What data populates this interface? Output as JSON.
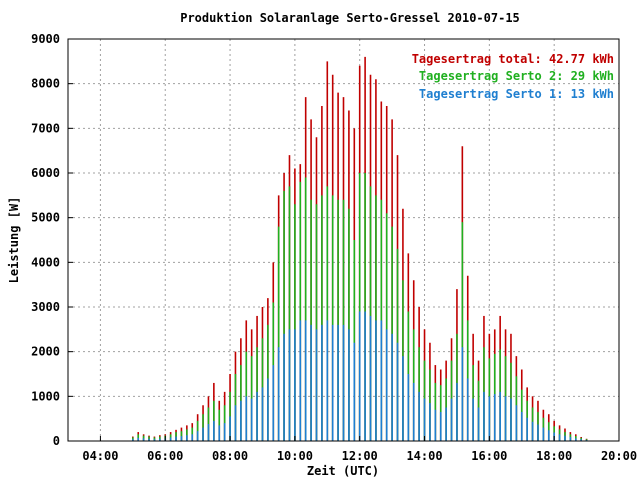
{
  "chart_data": {
    "type": "bar",
    "title": "Produktion Solaranlage Serto-Gressel 2010-07-15",
    "xlabel": "Zeit (UTC)",
    "ylabel": "Leistung [W]",
    "xlim": [
      "03:00",
      "20:00"
    ],
    "ylim": [
      0,
      9000
    ],
    "grid": true,
    "legend_position": "top-right",
    "x_ticks": [
      "04:00",
      "06:00",
      "08:00",
      "10:00",
      "12:00",
      "14:00",
      "16:00",
      "18:00",
      "20:00"
    ],
    "y_ticks": [
      "0",
      "1000",
      "2000",
      "3000",
      "4000",
      "5000",
      "6000",
      "7000",
      "8000",
      "9000"
    ],
    "legend": [
      {
        "label": "Tagesertrag total: 42.77 kWh",
        "color": "#c00000"
      },
      {
        "label": "Tagesertrag Serto 2: 29 kWh",
        "color": "#20b020"
      },
      {
        "label": "Tagesertrag Serto 1: 13 kWh",
        "color": "#1f7fd0"
      }
    ],
    "series_colors": {
      "total": "#c00000",
      "serto2": "#20b020",
      "serto1": "#1f7fd0"
    },
    "time_points": [
      "05:00",
      "05:10",
      "05:20",
      "05:30",
      "05:40",
      "05:50",
      "06:00",
      "06:10",
      "06:20",
      "06:30",
      "06:40",
      "06:50",
      "07:00",
      "07:10",
      "07:20",
      "07:30",
      "07:40",
      "07:50",
      "08:00",
      "08:10",
      "08:20",
      "08:30",
      "08:40",
      "08:50",
      "09:00",
      "09:10",
      "09:20",
      "09:30",
      "09:40",
      "09:50",
      "10:00",
      "10:10",
      "10:20",
      "10:30",
      "10:40",
      "10:50",
      "11:00",
      "11:10",
      "11:20",
      "11:30",
      "11:40",
      "11:50",
      "12:00",
      "12:10",
      "12:20",
      "12:30",
      "12:40",
      "12:50",
      "13:00",
      "13:10",
      "13:20",
      "13:30",
      "13:40",
      "13:50",
      "14:00",
      "14:10",
      "14:20",
      "14:30",
      "14:40",
      "14:50",
      "15:00",
      "15:10",
      "15:20",
      "15:30",
      "15:40",
      "15:50",
      "16:00",
      "16:10",
      "16:20",
      "16:30",
      "16:40",
      "16:50",
      "17:00",
      "17:10",
      "17:20",
      "17:30",
      "17:40",
      "17:50",
      "18:00",
      "18:10",
      "18:20",
      "18:30",
      "18:40",
      "18:50",
      "19:00"
    ],
    "total_values": [
      100,
      200,
      150,
      120,
      100,
      130,
      150,
      200,
      250,
      300,
      350,
      400,
      600,
      800,
      1000,
      1300,
      900,
      1100,
      1500,
      2000,
      2300,
      2700,
      2500,
      2800,
      3000,
      3200,
      4000,
      5500,
      6000,
      6400,
      6100,
      6200,
      7700,
      7200,
      6800,
      7500,
      8500,
      8200,
      7800,
      7700,
      7400,
      7000,
      8400,
      8600,
      8200,
      8100,
      7600,
      7500,
      7200,
      6400,
      5200,
      4200,
      3600,
      3000,
      2500,
      2200,
      1700,
      1600,
      1800,
      2300,
      3400,
      6600,
      3700,
      2400,
      1800,
      2800,
      2400,
      2500,
      2800,
      2500,
      2400,
      1900,
      1600,
      1200,
      1000,
      900,
      700,
      600,
      450,
      350,
      280,
      200,
      150,
      90,
      50
    ],
    "serto2_values": [
      80,
      150,
      120,
      100,
      80,
      100,
      120,
      150,
      200,
      220,
      260,
      300,
      450,
      600,
      750,
      900,
      700,
      800,
      1100,
      1500,
      1700,
      2000,
      1900,
      2100,
      2300,
      2600,
      3100,
      4800,
      5600,
      5700,
      5300,
      5800,
      5900,
      5400,
      5300,
      5500,
      5700,
      5500,
      5400,
      5400,
      5200,
      4500,
      6000,
      6000,
      5700,
      5500,
      5400,
      5100,
      4800,
      4300,
      3600,
      2900,
      2500,
      2100,
      1800,
      1600,
      1300,
      1250,
      1400,
      1800,
      2400,
      4900,
      2700,
      1700,
      1350,
      2100,
      1850,
      1950,
      2050,
      1900,
      1750,
      1450,
      1150,
      900,
      750,
      650,
      520,
      420,
      330,
      260,
      200,
      150,
      110,
      70,
      40
    ],
    "serto1_values": [
      40,
      70,
      60,
      50,
      40,
      50,
      60,
      80,
      100,
      110,
      130,
      150,
      220,
      300,
      380,
      450,
      350,
      400,
      550,
      800,
      900,
      1000,
      950,
      1100,
      1200,
      1400,
      1700,
      2100,
      2400,
      2500,
      2500,
      2700,
      2700,
      2600,
      2500,
      2600,
      2700,
      2600,
      2600,
      2600,
      2500,
      2200,
      2900,
      2900,
      2800,
      2700,
      2700,
      2500,
      2400,
      2200,
      1900,
      1500,
      1300,
      1100,
      950,
      850,
      700,
      650,
      750,
      950,
      1300,
      2100,
      1400,
      950,
      750,
      1100,
      1000,
      1050,
      1100,
      1000,
      950,
      800,
      650,
      520,
      430,
      370,
      300,
      240,
      190,
      150,
      120,
      90,
      60,
      40,
      20
    ]
  }
}
